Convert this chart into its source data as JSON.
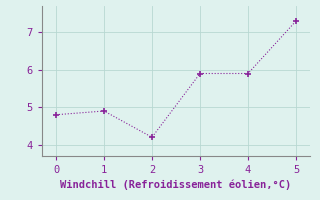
{
  "x": [
    0,
    1,
    2,
    3,
    4,
    5
  ],
  "y": [
    4.8,
    4.9,
    4.2,
    5.9,
    5.9,
    7.3
  ],
  "line_color": "#882299",
  "marker": "+",
  "marker_size": 5,
  "marker_linewidth": 1.2,
  "xlabel": "Windchill (Refroidissement éolien,°C)",
  "xlabel_color": "#882299",
  "xlabel_fontsize": 7.5,
  "xlim": [
    -0.3,
    5.3
  ],
  "ylim": [
    3.7,
    7.7
  ],
  "yticks": [
    4,
    5,
    6,
    7
  ],
  "xticks": [
    0,
    1,
    2,
    3,
    4,
    5
  ],
  "background_color": "#dff2ee",
  "grid_color": "#b8d8d2",
  "tick_color": "#882299",
  "spine_color": "#888888",
  "tick_fontsize": 7.5,
  "font_family": "monospace"
}
